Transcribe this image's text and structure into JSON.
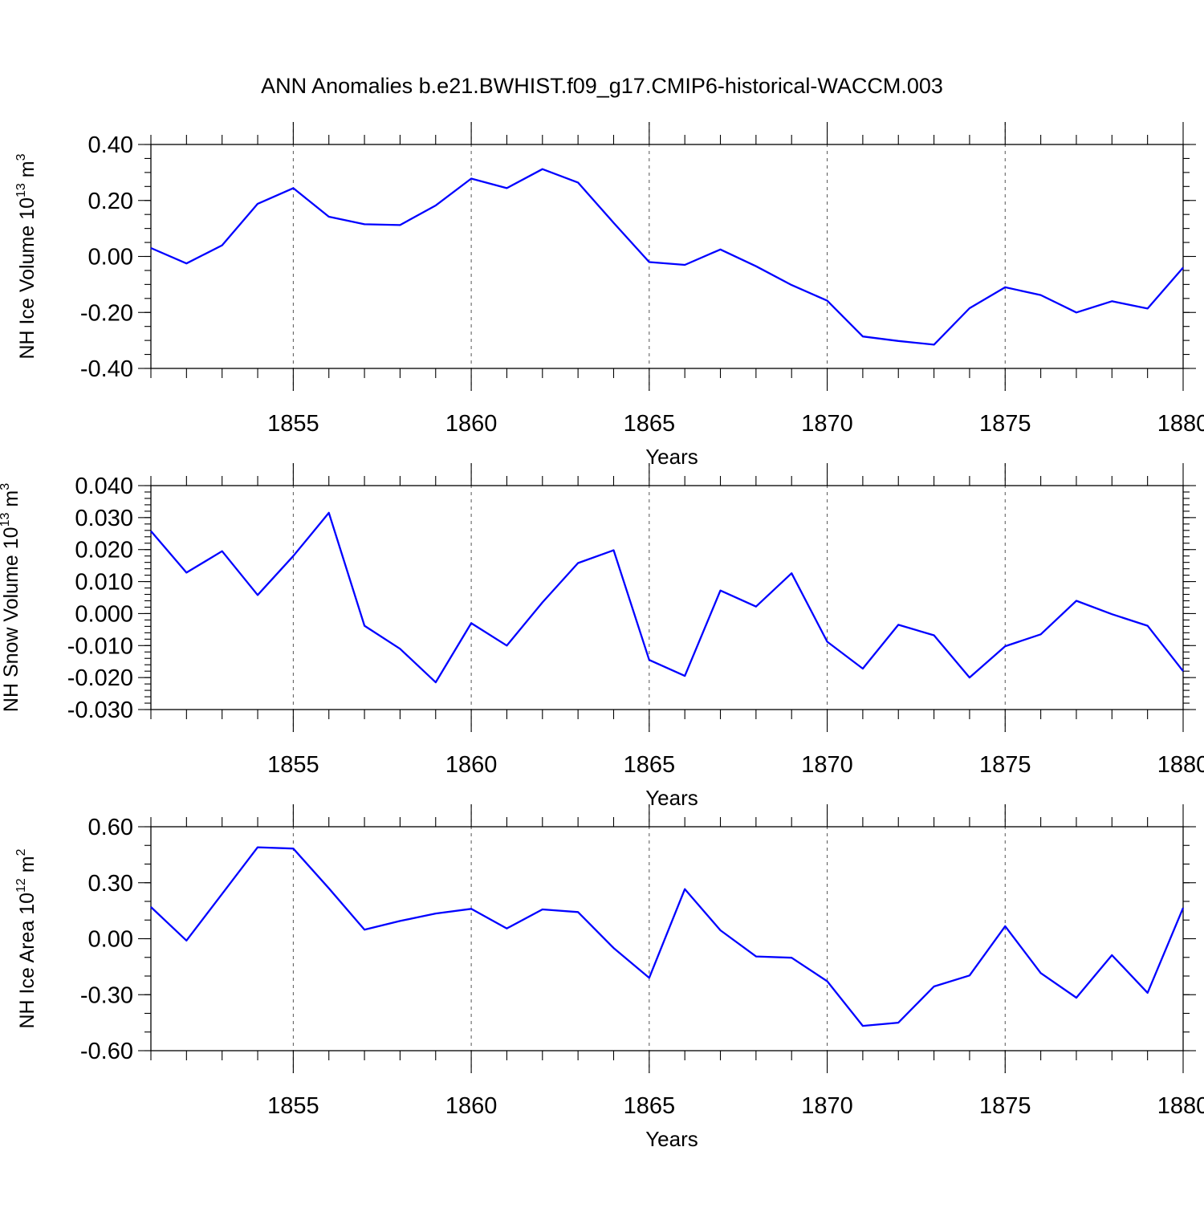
{
  "chart_data": {
    "type": "line",
    "title": "ANN Anomalies b.e21.BWHIST.f09_g17.CMIP6-historical-WACCM.003",
    "line_color": "#0000ff",
    "x": [
      1851,
      1852,
      1853,
      1854,
      1855,
      1856,
      1857,
      1858,
      1859,
      1860,
      1861,
      1862,
      1863,
      1864,
      1865,
      1866,
      1867,
      1868,
      1869,
      1870,
      1871,
      1872,
      1873,
      1874,
      1875,
      1876,
      1877,
      1878,
      1879,
      1880
    ],
    "xlim": [
      1851,
      1880
    ],
    "xticks": [
      1855,
      1860,
      1865,
      1870,
      1875,
      1880
    ],
    "xtick_labels": [
      "1855",
      "1860",
      "1865",
      "1870",
      "1875",
      "1880"
    ],
    "xlabel": "Years",
    "panels": [
      {
        "ylabel_main": "NH Ice Volume 10",
        "ylabel_exp": "13",
        "ylabel_unit": "m",
        "ylabel_unit_exp": "3",
        "ylim": [
          -0.4,
          0.4
        ],
        "yticks": [
          0.4,
          0.2,
          0.0,
          -0.2,
          -0.4
        ],
        "ytick_labels": [
          "0.40",
          "0.20",
          "0.00",
          "-0.20",
          "-0.40"
        ],
        "y_minor_step": 0.05,
        "values": [
          0.03,
          -0.025,
          0.04,
          0.188,
          0.244,
          0.142,
          0.115,
          0.112,
          0.182,
          0.278,
          0.244,
          0.312,
          0.264,
          0.12,
          -0.02,
          -0.03,
          0.025,
          -0.035,
          -0.102,
          -0.158,
          -0.286,
          -0.302,
          -0.315,
          -0.185,
          -0.11,
          -0.138,
          -0.2,
          -0.16,
          -0.186,
          -0.04
        ]
      },
      {
        "ylabel_main": "NH Snow Volume 10",
        "ylabel_exp": "13",
        "ylabel_unit": "m",
        "ylabel_unit_exp": "3",
        "ylim": [
          -0.03,
          0.04
        ],
        "yticks": [
          0.04,
          0.03,
          0.02,
          0.01,
          0.0,
          -0.01,
          -0.02,
          -0.03
        ],
        "ytick_labels": [
          "0.040",
          "0.030",
          "0.020",
          "0.010",
          "0.000",
          "-0.010",
          "-0.020",
          "-0.030"
        ],
        "y_minor_step": 0.002,
        "values": [
          0.0258,
          0.0128,
          0.0195,
          0.0058,
          0.018,
          0.0315,
          -0.0038,
          -0.011,
          -0.0215,
          -0.003,
          -0.01,
          0.0035,
          0.0158,
          0.0198,
          -0.0145,
          -0.0195,
          0.0072,
          0.0022,
          0.0126,
          -0.0088,
          -0.0172,
          -0.0035,
          -0.0068,
          -0.02,
          -0.0102,
          -0.0065,
          0.004,
          -0.0002,
          -0.0038,
          -0.018
        ]
      },
      {
        "ylabel_main": "NH Ice Area 10",
        "ylabel_exp": "12",
        "ylabel_unit": "m",
        "ylabel_unit_exp": "2",
        "ylim": [
          -0.6,
          0.6
        ],
        "yticks": [
          0.6,
          0.3,
          0.0,
          -0.3,
          -0.6
        ],
        "ytick_labels": [
          "0.60",
          "0.30",
          "0.00",
          "-0.30",
          "-0.60"
        ],
        "y_minor_step": 0.1,
        "values": [
          0.17,
          -0.01,
          0.24,
          0.49,
          0.483,
          0.27,
          0.048,
          0.095,
          0.135,
          0.16,
          0.055,
          0.157,
          0.143,
          -0.05,
          -0.21,
          0.266,
          0.045,
          -0.095,
          -0.102,
          -0.228,
          -0.467,
          -0.45,
          -0.256,
          -0.197,
          0.067,
          -0.184,
          -0.316,
          -0.088,
          -0.29,
          0.165
        ]
      }
    ]
  }
}
